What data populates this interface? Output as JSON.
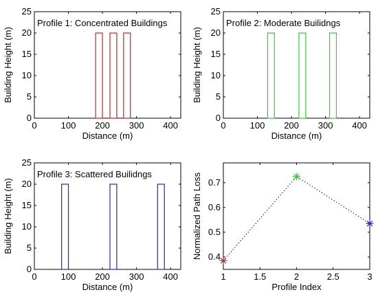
{
  "chart_data": [
    {
      "type": "bar",
      "title": "Profile 1: Concentrated  Buildings",
      "xlabel": "Distance (m)",
      "ylabel": "Building Height (m)",
      "xlim": [
        0,
        430
      ],
      "ylim": [
        0,
        25
      ],
      "xticks": [
        0,
        100,
        200,
        300,
        400
      ],
      "yticks": [
        0,
        5,
        10,
        15,
        20,
        25
      ],
      "color": "#cc2222",
      "buildings": [
        {
          "start": 180,
          "end": 200,
          "height": 20
        },
        {
          "start": 222,
          "end": 242,
          "height": 20
        },
        {
          "start": 262,
          "end": 282,
          "height": 20
        }
      ]
    },
    {
      "type": "bar",
      "title": "Profile 2: Moderate Builidngs",
      "xlabel": "Distance (m)",
      "ylabel": "Building Height (m)",
      "xlim": [
        0,
        430
      ],
      "ylim": [
        0,
        25
      ],
      "xticks": [
        0,
        100,
        200,
        300,
        400
      ],
      "yticks": [
        0,
        5,
        10,
        15,
        20,
        25
      ],
      "color": "#33cc33",
      "buildings": [
        {
          "start": 130,
          "end": 150,
          "height": 20
        },
        {
          "start": 222,
          "end": 242,
          "height": 20
        },
        {
          "start": 312,
          "end": 332,
          "height": 20
        }
      ]
    },
    {
      "type": "bar",
      "title": "Profile 3: Scattered Builidngs",
      "xlabel": "Distance (m)",
      "ylabel": "Building Height (m)",
      "xlim": [
        0,
        430
      ],
      "ylim": [
        0,
        25
      ],
      "xticks": [
        0,
        100,
        200,
        300,
        400
      ],
      "yticks": [
        0,
        5,
        10,
        15,
        20,
        25
      ],
      "color": "#2222cc",
      "buildings": [
        {
          "start": 80,
          "end": 100,
          "height": 20
        },
        {
          "start": 222,
          "end": 242,
          "height": 20
        },
        {
          "start": 362,
          "end": 382,
          "height": 20
        }
      ]
    },
    {
      "type": "line",
      "title": "",
      "xlabel": "Profile Index",
      "ylabel": "Normalized Path Loss",
      "xlim": [
        1,
        3
      ],
      "ylim": [
        0.35,
        0.78
      ],
      "xticks": [
        1,
        1.5,
        2,
        2.5,
        3
      ],
      "yticks": [
        0.4,
        0.5,
        0.6,
        0.7
      ],
      "x": [
        1,
        2,
        3
      ],
      "y": [
        0.385,
        0.725,
        0.535
      ],
      "marker_colors": [
        "#993322",
        "#33cc33",
        "#2222cc"
      ],
      "line_style": "dotted"
    }
  ]
}
